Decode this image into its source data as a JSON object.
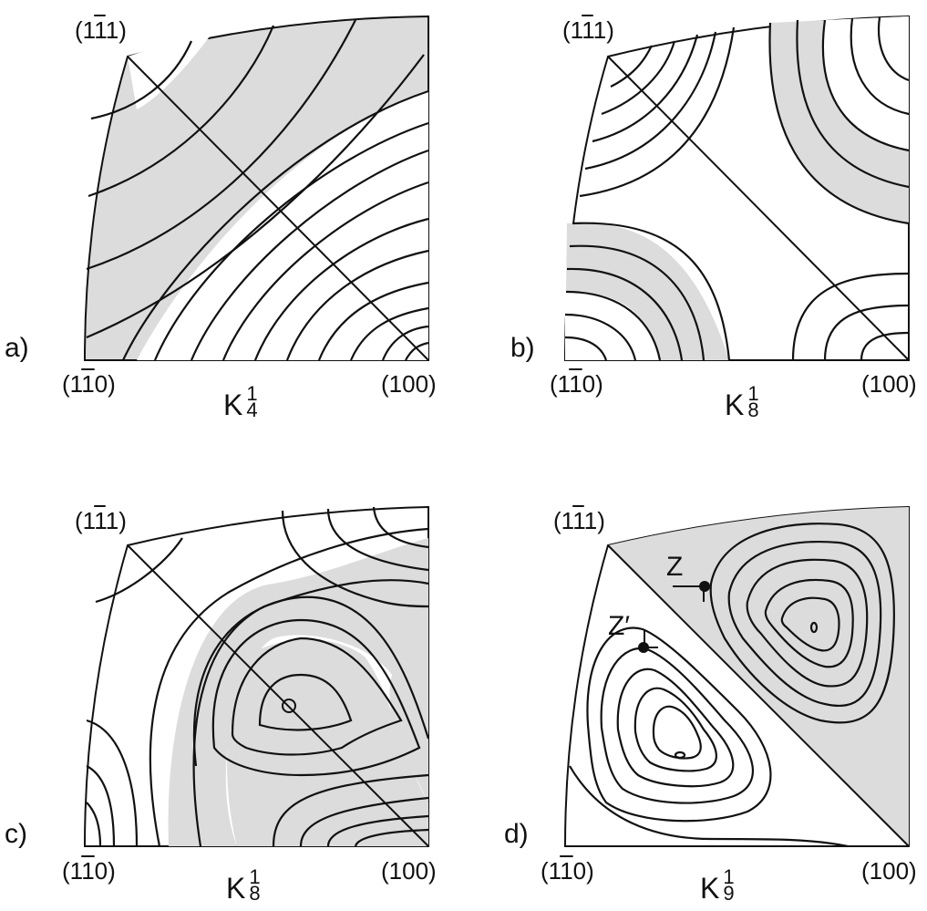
{
  "panels": [
    {
      "letter": "a)",
      "corner_top": {
        "pre": "(1",
        "bar": "1",
        "post": "1)"
      },
      "corner_left": {
        "pre": "(1",
        "bar": "1",
        "post": "0)"
      },
      "corner_right": "(100)",
      "k_symbol": "K",
      "k_sub": "4",
      "k_sup": "1"
    },
    {
      "letter": "b)",
      "corner_top": {
        "pre": "(1",
        "bar": "1",
        "post": "1)"
      },
      "corner_left": {
        "pre": "(1",
        "bar": "1",
        "post": "0)"
      },
      "corner_right": "(100)",
      "k_symbol": "K",
      "k_sub": "8",
      "k_sup": "1"
    },
    {
      "letter": "c)",
      "corner_top": {
        "pre": "(1",
        "bar": "1",
        "post": "1)"
      },
      "corner_left": {
        "pre": "(1",
        "bar": "1",
        "post": "0)"
      },
      "corner_right": "(100)",
      "k_symbol": "K",
      "k_sub": "8",
      "k_sup": "1"
    },
    {
      "letter": "d)",
      "corner_top": {
        "pre": "(1",
        "bar": "1",
        "post": "1)"
      },
      "corner_left": {
        "pre": "(1",
        "bar": "1",
        "post": "0)"
      },
      "corner_right": "(100)",
      "k_symbol": "K",
      "k_sub": "9",
      "k_sup": "1",
      "marker_z": "Z",
      "marker_z_prime": "Z′"
    }
  ],
  "colors": {
    "shade": "#dcdcdc",
    "line": "#111111"
  }
}
